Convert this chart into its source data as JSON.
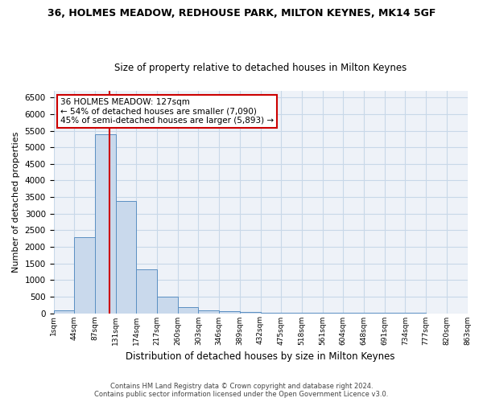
{
  "title": "36, HOLMES MEADOW, REDHOUSE PARK, MILTON KEYNES, MK14 5GF",
  "subtitle": "Size of property relative to detached houses in Milton Keynes",
  "xlabel": "Distribution of detached houses by size in Milton Keynes",
  "ylabel": "Number of detached properties",
  "footer": "Contains HM Land Registry data © Crown copyright and database right 2024.\nContains public sector information licensed under the Open Government Licence v3.0.",
  "bar_values": [
    75,
    2300,
    5400,
    3380,
    1320,
    490,
    185,
    85,
    50,
    30,
    20,
    10,
    5,
    3,
    2,
    1,
    1,
    1,
    0,
    0
  ],
  "bar_color": "#c9d9ec",
  "bar_edge_color": "#5a8fc2",
  "grid_color": "#c8d8e8",
  "background_color": "#eef2f8",
  "tick_labels": [
    "1sqm",
    "44sqm",
    "87sqm",
    "131sqm",
    "174sqm",
    "217sqm",
    "260sqm",
    "303sqm",
    "346sqm",
    "389sqm",
    "432sqm",
    "475sqm",
    "518sqm",
    "561sqm",
    "604sqm",
    "648sqm",
    "691sqm",
    "734sqm",
    "777sqm",
    "820sqm",
    "863sqm"
  ],
  "vline_x": 2.72,
  "vline_color": "#cc0000",
  "annotation_text": "36 HOLMES MEADOW: 127sqm\n← 54% of detached houses are smaller (7,090)\n45% of semi-detached houses are larger (5,893) →",
  "ylim": [
    0,
    6700
  ],
  "yticks": [
    0,
    500,
    1000,
    1500,
    2000,
    2500,
    3000,
    3500,
    4000,
    4500,
    5000,
    5500,
    6000,
    6500
  ],
  "title_fontsize": 9,
  "subtitle_fontsize": 8.5,
  "ylabel_fontsize": 8,
  "xlabel_fontsize": 8.5
}
